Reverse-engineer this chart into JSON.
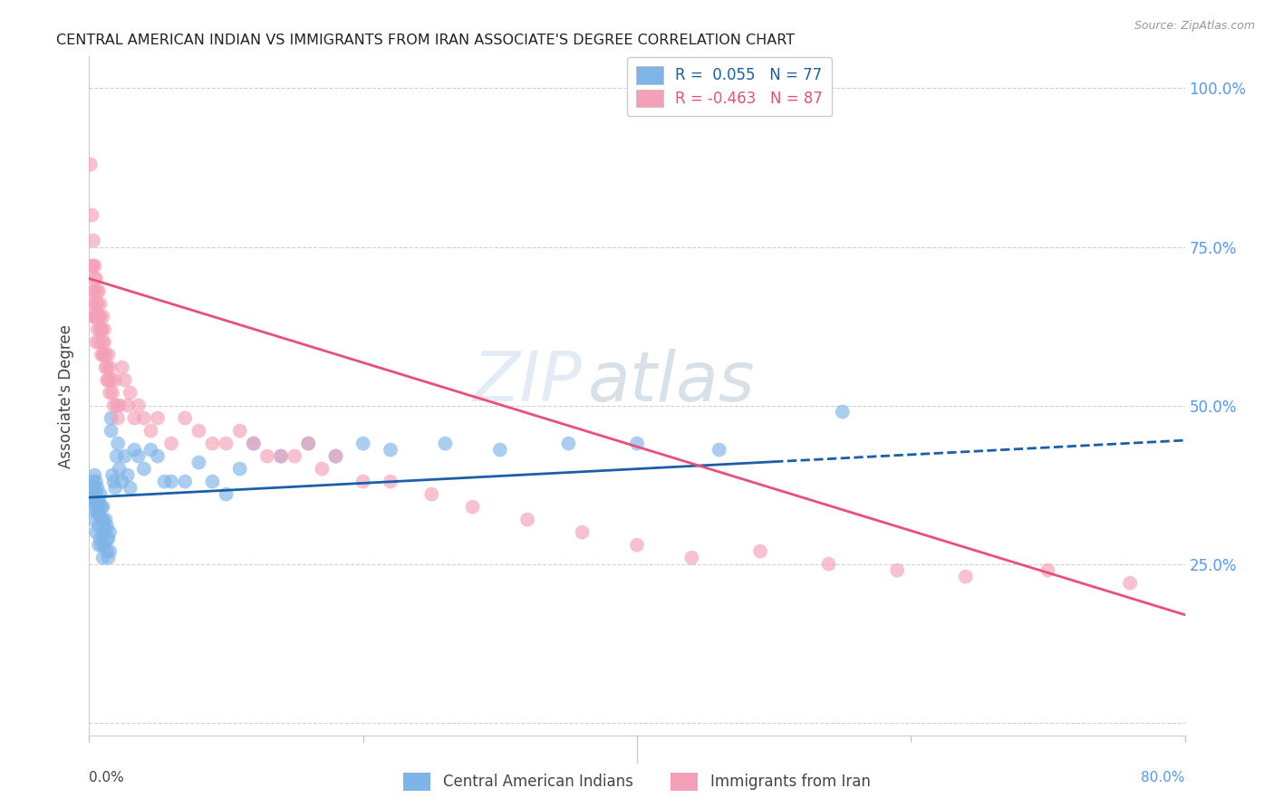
{
  "title": "CENTRAL AMERICAN INDIAN VS IMMIGRANTS FROM IRAN ASSOCIATE'S DEGREE CORRELATION CHART",
  "source": "Source: ZipAtlas.com",
  "ylabel": "Associate's Degree",
  "xlim": [
    0.0,
    0.8
  ],
  "ylim": [
    -0.02,
    1.05
  ],
  "ytick_positions": [
    0.0,
    0.25,
    0.5,
    0.75,
    1.0
  ],
  "ytick_labels": [
    "",
    "25.0%",
    "50.0%",
    "75.0%",
    "100.0%"
  ],
  "blue_color": "#7EB5E8",
  "pink_color": "#F4A0B8",
  "blue_line_color": "#1A5FA8",
  "pink_line_color": "#E8507A",
  "watermark_zip": "ZIP",
  "watermark_atlas": "atlas",
  "blue_line_solid_end": 0.5,
  "blue_line_start_y": 0.355,
  "blue_line_end_y": 0.445,
  "pink_line_start_y": 0.7,
  "pink_line_end_y": 0.17,
  "blue_x": [
    0.001,
    0.002,
    0.002,
    0.003,
    0.003,
    0.003,
    0.004,
    0.004,
    0.004,
    0.005,
    0.005,
    0.005,
    0.005,
    0.006,
    0.006,
    0.006,
    0.007,
    0.007,
    0.007,
    0.007,
    0.008,
    0.008,
    0.008,
    0.009,
    0.009,
    0.009,
    0.01,
    0.01,
    0.01,
    0.01,
    0.011,
    0.011,
    0.012,
    0.012,
    0.013,
    0.013,
    0.013,
    0.014,
    0.014,
    0.015,
    0.015,
    0.016,
    0.016,
    0.017,
    0.018,
    0.019,
    0.02,
    0.021,
    0.022,
    0.024,
    0.026,
    0.028,
    0.03,
    0.033,
    0.036,
    0.04,
    0.045,
    0.05,
    0.055,
    0.06,
    0.07,
    0.08,
    0.09,
    0.1,
    0.11,
    0.12,
    0.14,
    0.16,
    0.18,
    0.2,
    0.22,
    0.26,
    0.3,
    0.35,
    0.4,
    0.46,
    0.55
  ],
  "blue_y": [
    0.355,
    0.37,
    0.34,
    0.36,
    0.38,
    0.32,
    0.35,
    0.37,
    0.39,
    0.34,
    0.36,
    0.38,
    0.3,
    0.33,
    0.35,
    0.37,
    0.31,
    0.33,
    0.35,
    0.28,
    0.34,
    0.36,
    0.29,
    0.32,
    0.34,
    0.28,
    0.3,
    0.32,
    0.34,
    0.26,
    0.31,
    0.28,
    0.3,
    0.32,
    0.29,
    0.31,
    0.27,
    0.29,
    0.26,
    0.3,
    0.27,
    0.48,
    0.46,
    0.39,
    0.38,
    0.37,
    0.42,
    0.44,
    0.4,
    0.38,
    0.42,
    0.39,
    0.37,
    0.43,
    0.42,
    0.4,
    0.43,
    0.42,
    0.38,
    0.38,
    0.38,
    0.41,
    0.38,
    0.36,
    0.4,
    0.44,
    0.42,
    0.44,
    0.42,
    0.44,
    0.43,
    0.44,
    0.43,
    0.44,
    0.44,
    0.43,
    0.49
  ],
  "pink_x": [
    0.001,
    0.002,
    0.002,
    0.002,
    0.003,
    0.003,
    0.003,
    0.003,
    0.004,
    0.004,
    0.004,
    0.004,
    0.005,
    0.005,
    0.005,
    0.005,
    0.006,
    0.006,
    0.006,
    0.006,
    0.007,
    0.007,
    0.007,
    0.007,
    0.008,
    0.008,
    0.008,
    0.009,
    0.009,
    0.009,
    0.01,
    0.01,
    0.01,
    0.011,
    0.011,
    0.011,
    0.012,
    0.012,
    0.013,
    0.013,
    0.014,
    0.014,
    0.015,
    0.015,
    0.016,
    0.017,
    0.018,
    0.019,
    0.02,
    0.021,
    0.022,
    0.024,
    0.026,
    0.028,
    0.03,
    0.033,
    0.036,
    0.04,
    0.045,
    0.05,
    0.06,
    0.07,
    0.08,
    0.09,
    0.1,
    0.11,
    0.12,
    0.13,
    0.14,
    0.15,
    0.16,
    0.17,
    0.18,
    0.2,
    0.22,
    0.25,
    0.28,
    0.32,
    0.36,
    0.4,
    0.44,
    0.49,
    0.54,
    0.59,
    0.64,
    0.7,
    0.76
  ],
  "pink_y": [
    0.88,
    0.72,
    0.66,
    0.8,
    0.68,
    0.72,
    0.76,
    0.64,
    0.68,
    0.72,
    0.7,
    0.64,
    0.7,
    0.66,
    0.64,
    0.6,
    0.68,
    0.64,
    0.62,
    0.66,
    0.68,
    0.64,
    0.6,
    0.64,
    0.66,
    0.62,
    0.64,
    0.62,
    0.58,
    0.62,
    0.64,
    0.6,
    0.58,
    0.62,
    0.58,
    0.6,
    0.56,
    0.58,
    0.56,
    0.54,
    0.58,
    0.54,
    0.56,
    0.52,
    0.54,
    0.52,
    0.5,
    0.54,
    0.5,
    0.48,
    0.5,
    0.56,
    0.54,
    0.5,
    0.52,
    0.48,
    0.5,
    0.48,
    0.46,
    0.48,
    0.44,
    0.48,
    0.46,
    0.44,
    0.44,
    0.46,
    0.44,
    0.42,
    0.42,
    0.42,
    0.44,
    0.4,
    0.42,
    0.38,
    0.38,
    0.36,
    0.34,
    0.32,
    0.3,
    0.28,
    0.26,
    0.27,
    0.25,
    0.24,
    0.23,
    0.24,
    0.22
  ]
}
